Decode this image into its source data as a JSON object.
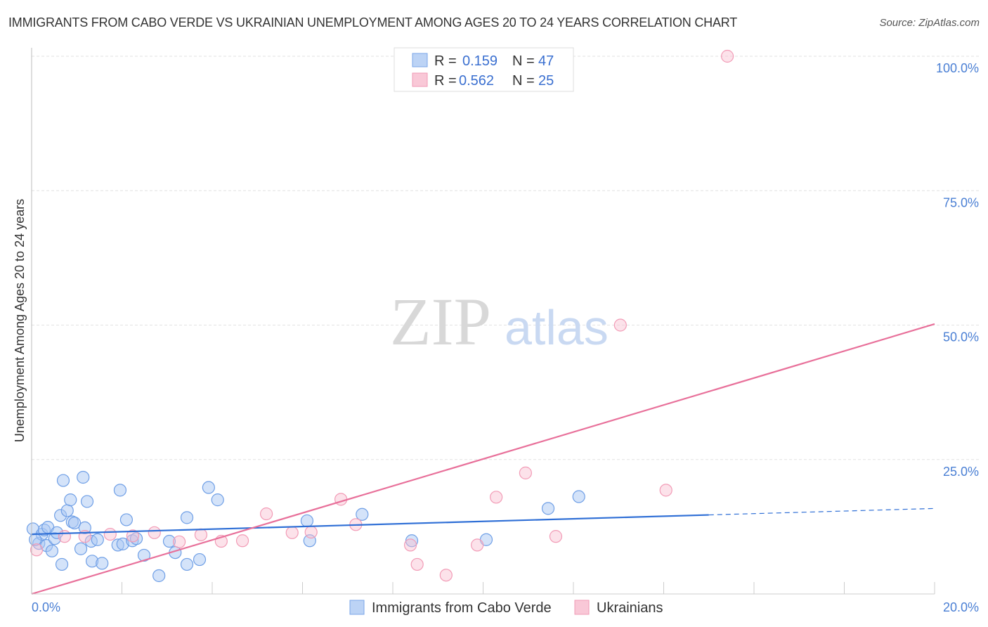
{
  "chart_data": {
    "type": "scatter",
    "title": "IMMIGRANTS FROM CABO VERDE VS UKRAINIAN UNEMPLOYMENT AMONG AGES 20 TO 24 YEARS CORRELATION CHART",
    "source": "Source: ZipAtlas.com",
    "xlabel": "",
    "ylabel": "Unemployment Among Ages 20 to 24 years",
    "xlim": [
      0,
      20
    ],
    "ylim": [
      0,
      100
    ],
    "x_tick_labels": [
      "0.0%",
      "20.0%"
    ],
    "y_ticks": [
      25,
      50,
      75,
      100
    ],
    "y_tick_labels": [
      "25.0%",
      "50.0%",
      "75.0%",
      "100.0%"
    ],
    "grid": true,
    "legend_placement": "top-center",
    "watermark": "ZIPatlas",
    "series": [
      {
        "name": "Immigrants from Cabo Verde",
        "color": "#6f9fe6",
        "line_color": "#2f6fd6",
        "R": "0.159",
        "N": "47",
        "trend": {
          "x0": 0,
          "y0": 11.1,
          "x_solid_end": 15,
          "x1": 20,
          "y1": 15.9
        },
        "points": [
          [
            0.03,
            12.1
          ],
          [
            0.16,
            9.4
          ],
          [
            0.23,
            11.1
          ],
          [
            0.28,
            11.9
          ],
          [
            0.36,
            12.4
          ],
          [
            0.33,
            9.0
          ],
          [
            0.45,
            8.0
          ],
          [
            0.51,
            10.3
          ],
          [
            0.56,
            11.4
          ],
          [
            0.64,
            14.6
          ],
          [
            0.67,
            5.5
          ],
          [
            0.7,
            21.1
          ],
          [
            0.79,
            15.5
          ],
          [
            0.86,
            17.5
          ],
          [
            0.9,
            13.4
          ],
          [
            0.95,
            13.2
          ],
          [
            1.09,
            8.4
          ],
          [
            1.14,
            21.7
          ],
          [
            1.18,
            12.3
          ],
          [
            1.23,
            17.2
          ],
          [
            1.32,
            9.8
          ],
          [
            1.34,
            6.1
          ],
          [
            1.46,
            10.1
          ],
          [
            1.56,
            5.7
          ],
          [
            1.91,
            9.1
          ],
          [
            1.96,
            19.3
          ],
          [
            2.02,
            9.3
          ],
          [
            2.1,
            13.8
          ],
          [
            2.23,
            9.9
          ],
          [
            2.32,
            10.3
          ],
          [
            2.49,
            7.2
          ],
          [
            2.82,
            3.4
          ],
          [
            3.05,
            9.8
          ],
          [
            3.18,
            7.7
          ],
          [
            3.44,
            14.2
          ],
          [
            3.44,
            5.5
          ],
          [
            3.72,
            6.4
          ],
          [
            3.92,
            19.8
          ],
          [
            4.12,
            17.5
          ],
          [
            6.1,
            13.6
          ],
          [
            6.16,
            9.9
          ],
          [
            7.32,
            14.8
          ],
          [
            8.42,
            9.9
          ],
          [
            10.07,
            10.1
          ],
          [
            11.44,
            15.9
          ],
          [
            12.12,
            18.1
          ],
          [
            0.08,
            10.1
          ]
        ]
      },
      {
        "name": "Ukrainians",
        "color": "#f29bb6",
        "line_color": "#e8709a",
        "R": "0.562",
        "N": "25",
        "trend": {
          "x0": 0,
          "y0": 0,
          "x_solid_end": 20,
          "x1": 20,
          "y1": 50.2
        },
        "points": [
          [
            0.11,
            8.2
          ],
          [
            0.73,
            10.7
          ],
          [
            1.18,
            10.7
          ],
          [
            1.74,
            11.1
          ],
          [
            2.24,
            10.8
          ],
          [
            2.72,
            11.4
          ],
          [
            3.27,
            9.7
          ],
          [
            3.75,
            11.0
          ],
          [
            4.2,
            9.8
          ],
          [
            4.67,
            9.9
          ],
          [
            5.2,
            14.9
          ],
          [
            5.77,
            11.4
          ],
          [
            6.19,
            11.5
          ],
          [
            6.85,
            17.6
          ],
          [
            7.18,
            12.9
          ],
          [
            8.39,
            9.1
          ],
          [
            8.54,
            5.5
          ],
          [
            9.18,
            3.5
          ],
          [
            9.87,
            9.1
          ],
          [
            10.29,
            18.0
          ],
          [
            10.94,
            22.5
          ],
          [
            11.61,
            10.7
          ],
          [
            13.04,
            50.0
          ],
          [
            14.05,
            19.3
          ],
          [
            15.41,
            100.0
          ]
        ]
      }
    ],
    "legend_labels": {
      "r": "R =",
      "n": "N ="
    }
  }
}
